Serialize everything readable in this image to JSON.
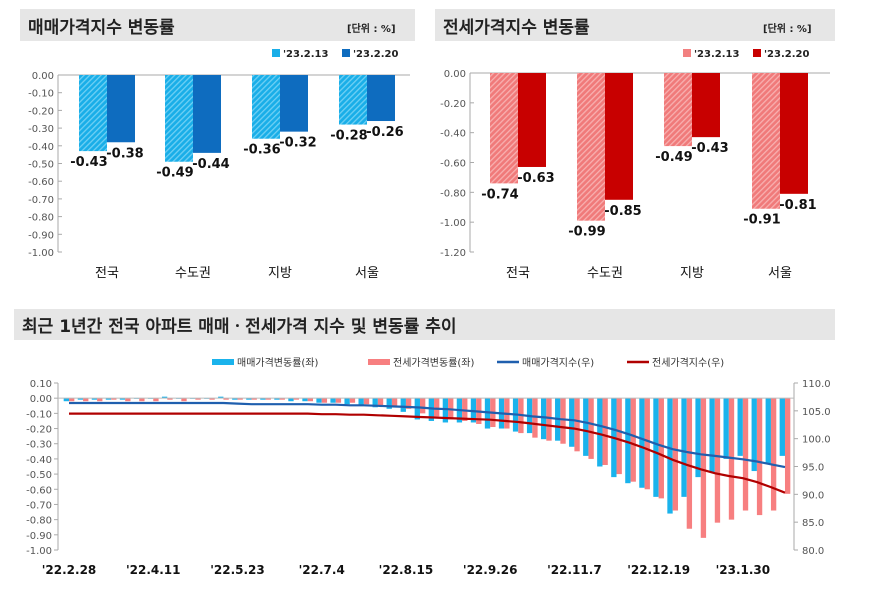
{
  "colors": {
    "sale_prev": "#19aee8",
    "sale_cur": "#0e6cbf",
    "jeonse_prev": "#f28080",
    "jeonse_cur": "#c80000",
    "sale_index": "#1f5fae",
    "jeonse_index": "#b00000",
    "bar_sale": "#1ab3ec",
    "bar_jeonse": "#f77f80"
  },
  "chart_data": [
    {
      "type": "bar",
      "title": "매매가격지수 변동률",
      "unit": "[단위 : %]",
      "categories": [
        "전국",
        "수도권",
        "지방",
        "서울"
      ],
      "series": [
        {
          "name": "'23.2.13",
          "values": [
            -0.43,
            -0.49,
            -0.36,
            -0.28
          ]
        },
        {
          "name": "'23.2.20",
          "values": [
            -0.38,
            -0.44,
            -0.32,
            -0.26
          ]
        }
      ],
      "ylim": [
        -1.0,
        0.0
      ],
      "yticks": [
        "0.00",
        "-0.10",
        "-0.20",
        "-0.30",
        "-0.40",
        "-0.50",
        "-0.60",
        "-0.70",
        "-0.80",
        "-0.90",
        "-1.00"
      ],
      "legend": "top-right",
      "grid": false
    },
    {
      "type": "bar",
      "title": "전세가격지수 변동률",
      "unit": "[단위 : %]",
      "categories": [
        "전국",
        "수도권",
        "지방",
        "서울"
      ],
      "series": [
        {
          "name": "'23.2.13",
          "values": [
            -0.74,
            -0.99,
            -0.49,
            -0.91
          ]
        },
        {
          "name": "'23.2.20",
          "values": [
            -0.63,
            -0.85,
            -0.43,
            -0.81
          ]
        }
      ],
      "ylim": [
        -1.2,
        0.0
      ],
      "yticks": [
        "0.00",
        "-0.20",
        "-0.40",
        "-0.60",
        "-0.80",
        "-1.00",
        "-1.20"
      ],
      "legend": "top-right",
      "grid": false
    },
    {
      "type": "bar+line",
      "title": "최근 1년간 전국 아파트 매매ㆍ전세가격 지수 및 변동률 추이",
      "xticks": [
        "'22.2.28",
        "'22.4.11",
        "'22.5.23",
        "'22.7.4",
        "'22.8.15",
        "'22.9.26",
        "'22.11.7",
        "'22.12.19",
        "'23.1.30"
      ],
      "ylim_left": [
        -1.0,
        0.1
      ],
      "yticks_left": [
        "0.10",
        "0.00",
        "-0.10",
        "-0.20",
        "-0.30",
        "-0.40",
        "-0.50",
        "-0.60",
        "-0.70",
        "-0.80",
        "-0.90",
        "-1.00"
      ],
      "ylim_right": [
        80.0,
        110.0
      ],
      "yticks_right": [
        "110.0",
        "105.0",
        "100.0",
        "95.0",
        "90.0",
        "85.0",
        "80.0"
      ],
      "legend": "top",
      "series": [
        {
          "name": "매매가격변동률(좌)",
          "type": "bar",
          "axis": "left",
          "values": [
            -0.02,
            -0.01,
            -0.01,
            -0.01,
            -0.01,
            0.0,
            0.0,
            0.01,
            0.0,
            0.0,
            0.0,
            0.01,
            -0.01,
            -0.01,
            -0.01,
            -0.01,
            -0.02,
            -0.02,
            -0.03,
            -0.03,
            -0.04,
            -0.05,
            -0.06,
            -0.07,
            -0.09,
            -0.14,
            -0.15,
            -0.16,
            -0.16,
            -0.16,
            -0.2,
            -0.2,
            -0.22,
            -0.23,
            -0.27,
            -0.28,
            -0.32,
            -0.38,
            -0.45,
            -0.52,
            -0.56,
            -0.59,
            -0.65,
            -0.76,
            -0.65,
            -0.52,
            -0.49,
            -0.4,
            -0.38,
            -0.48,
            -0.43,
            -0.38
          ]
        },
        {
          "name": "전세가격변동률(좌)",
          "type": "bar",
          "axis": "left",
          "values": [
            -0.02,
            -0.02,
            -0.02,
            -0.01,
            -0.02,
            -0.02,
            -0.02,
            -0.01,
            -0.02,
            -0.01,
            -0.01,
            -0.01,
            -0.01,
            -0.01,
            -0.01,
            -0.01,
            -0.01,
            -0.02,
            -0.03,
            -0.03,
            -0.03,
            -0.04,
            -0.05,
            -0.05,
            -0.07,
            -0.1,
            -0.12,
            -0.14,
            -0.15,
            -0.17,
            -0.19,
            -0.2,
            -0.23,
            -0.26,
            -0.28,
            -0.3,
            -0.35,
            -0.4,
            -0.44,
            -0.5,
            -0.55,
            -0.6,
            -0.66,
            -0.74,
            -0.86,
            -0.92,
            -0.82,
            -0.8,
            -0.74,
            -0.77,
            -0.74,
            -0.63
          ]
        },
        {
          "name": "매매가격지수(우)",
          "type": "line",
          "axis": "right",
          "values": [
            106.4,
            106.4,
            106.4,
            106.4,
            106.4,
            106.4,
            106.4,
            106.4,
            106.4,
            106.4,
            106.4,
            106.4,
            106.3,
            106.2,
            106.2,
            106.2,
            106.2,
            106.2,
            106.1,
            106.1,
            106.0,
            106.0,
            105.9,
            105.8,
            105.7,
            105.6,
            105.4,
            105.3,
            105.1,
            104.9,
            104.7,
            104.5,
            104.3,
            104.0,
            103.8,
            103.5,
            103.3,
            102.8,
            102.2,
            101.5,
            100.7,
            99.8,
            98.9,
            98.1,
            97.6,
            97.2,
            96.9,
            96.6,
            96.3,
            95.9,
            95.4,
            94.9
          ]
        },
        {
          "name": "전세가격지수(우)",
          "type": "line",
          "axis": "right",
          "values": [
            104.5,
            104.5,
            104.5,
            104.5,
            104.5,
            104.5,
            104.5,
            104.5,
            104.5,
            104.5,
            104.5,
            104.5,
            104.5,
            104.5,
            104.5,
            104.5,
            104.5,
            104.5,
            104.4,
            104.4,
            104.3,
            104.3,
            104.2,
            104.1,
            104.0,
            103.9,
            103.8,
            103.7,
            103.6,
            103.5,
            103.4,
            103.2,
            103.0,
            102.7,
            102.4,
            102.1,
            101.8,
            101.3,
            100.7,
            100.0,
            99.2,
            98.3,
            97.3,
            96.2,
            95.3,
            94.5,
            93.8,
            93.3,
            92.9,
            92.2,
            91.3,
            90.3
          ]
        }
      ]
    }
  ]
}
